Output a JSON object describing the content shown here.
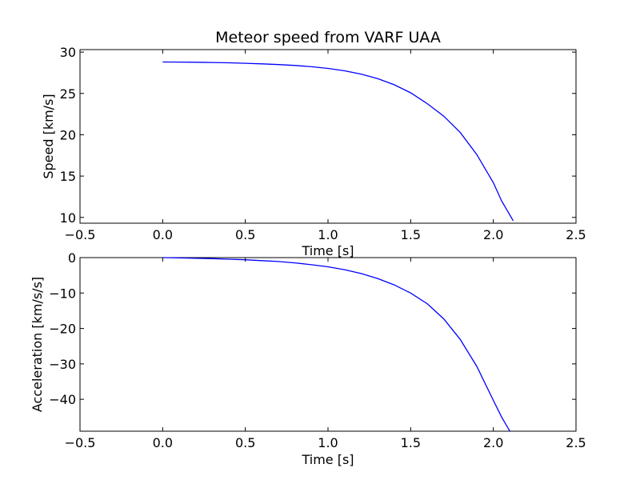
{
  "chart_data": [
    {
      "type": "line",
      "title": "Meteor speed from  VARF UAA",
      "xlabel": "Time [s]",
      "ylabel": "Speed [km/s]",
      "xlim": [
        -0.5,
        2.5
      ],
      "ylim": [
        9.3,
        30.3
      ],
      "xticks": [
        -0.5,
        0.0,
        0.5,
        1.0,
        1.5,
        2.0,
        2.5
      ],
      "xtick_labels": [
        "−0.5",
        "0.0",
        "0.5",
        "1.0",
        "1.5",
        "2.0",
        "2.5"
      ],
      "yticks": [
        10,
        15,
        20,
        25,
        30
      ],
      "ytick_labels": [
        "10",
        "15",
        "20",
        "25",
        "30"
      ],
      "grid": false,
      "color": "#0000ff",
      "series": [
        {
          "x": [
            0.0,
            0.1,
            0.2,
            0.3,
            0.4,
            0.5,
            0.6,
            0.7,
            0.8,
            0.9,
            1.0,
            1.1,
            1.2,
            1.3,
            1.4,
            1.5,
            1.6,
            1.7,
            1.8,
            1.9,
            2.0,
            2.05,
            2.12
          ],
          "values": [
            28.8,
            28.79,
            28.77,
            28.74,
            28.7,
            28.65,
            28.58,
            28.49,
            28.38,
            28.23,
            28.03,
            27.74,
            27.34,
            26.79,
            26.05,
            25.07,
            23.77,
            22.25,
            20.27,
            17.6,
            14.2,
            12.0,
            9.6
          ]
        }
      ]
    },
    {
      "type": "line",
      "title": "",
      "xlabel": "Time [s]",
      "ylabel": "Acceleration [km/s/s]",
      "xlim": [
        -0.5,
        2.5
      ],
      "ylim": [
        -49,
        0
      ],
      "xticks": [
        -0.5,
        0.0,
        0.5,
        1.0,
        1.5,
        2.0,
        2.5
      ],
      "xtick_labels": [
        "−0.5",
        "0.0",
        "0.5",
        "1.0",
        "1.5",
        "2.0",
        "2.5"
      ],
      "yticks": [
        0,
        -10,
        -20,
        -30,
        -40
      ],
      "ytick_labels": [
        "0",
        "−10",
        "−20",
        "−30",
        "−40"
      ],
      "grid": false,
      "color": "#0000ff",
      "series": [
        {
          "x": [
            0.0,
            0.1,
            0.2,
            0.3,
            0.4,
            0.5,
            0.6,
            0.7,
            0.8,
            0.9,
            1.0,
            1.1,
            1.2,
            1.3,
            1.4,
            1.5,
            1.6,
            1.7,
            1.8,
            1.9,
            2.0,
            2.05,
            2.1
          ],
          "values": [
            0.0,
            -0.1,
            -0.2,
            -0.3,
            -0.45,
            -0.6,
            -0.85,
            -1.1,
            -1.5,
            -2.0,
            -2.6,
            -3.4,
            -4.5,
            -5.9,
            -7.7,
            -10.0,
            -13.0,
            -17.3,
            -23.1,
            -30.7,
            -40.3,
            -45.0,
            -49.0
          ]
        }
      ]
    }
  ]
}
